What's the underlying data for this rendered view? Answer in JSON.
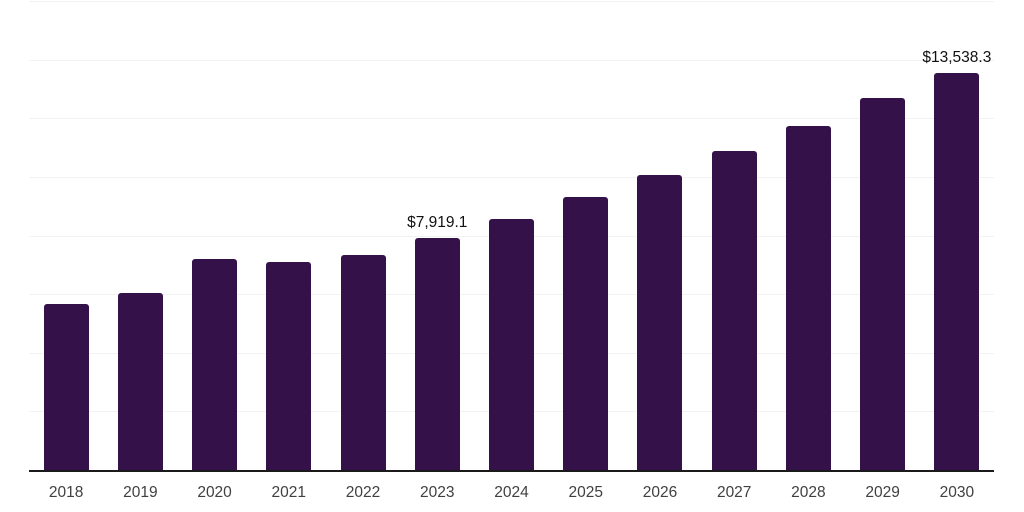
{
  "chart_data": {
    "type": "bar",
    "title": "",
    "xlabel": "",
    "ylabel": "",
    "categories": [
      "2018",
      "2019",
      "2020",
      "2021",
      "2022",
      "2023",
      "2024",
      "2025",
      "2026",
      "2027",
      "2028",
      "2029",
      "2030"
    ],
    "values": [
      5680,
      6050,
      7210,
      7080,
      7350,
      7919.1,
      8580,
      9300,
      10050,
      10870,
      11730,
      12680,
      13538.3
    ],
    "data_labels": [
      "",
      "",
      "",
      "",
      "",
      "$7,919.1",
      "",
      "",
      "",
      "",
      "",
      "",
      "$13,538.3"
    ],
    "ylim": [
      0,
      16000
    ],
    "gridline_step": 2000,
    "grid": "horizontal-only",
    "legend": "none",
    "colors": {
      "bar": "#351149",
      "gridline": "#f2f2f2",
      "axis_line": "#1a1a1a",
      "tick_label": "#404040",
      "data_label": "#111111",
      "background": "#ffffff"
    }
  }
}
